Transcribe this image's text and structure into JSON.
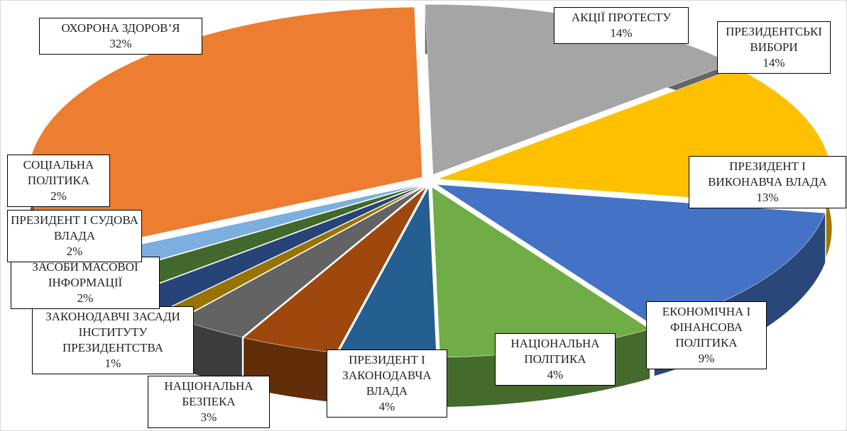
{
  "chart_data": {
    "type": "pie",
    "categories": [
      "АКЦІЇ ПРОТЕСТУ",
      "ПРЕЗИДЕНТСЬКІ ВИБОРИ",
      "ПРЕЗИДЕНТ І ВИКОНАВЧА ВЛАДА",
      "ЕКОНОМІЧНА І ФІНАНСОВА ПОЛІТИКА",
      "НАЦІОНАЛЬНА ПОЛІТИКА",
      "ПРЕЗИДЕНТ І ЗАКОНОДАВЧА ВЛАДА",
      "НАЦІОНАЛЬНА БЕЗПЕКА",
      "ЗАКОНОДАВЧІ ЗАСАДИ ІНСТИТУТУ ПРЕЗИДЕНТСТВА",
      "ЗАСОБИ МАСОВОЇ ІНФОРМАЦІЇ",
      "ПРЕЗИДЕНТ І СУДОВА ВЛАДА",
      "СОЦІАЛЬНА ПОЛІТИКА",
      "ОХОРОНА ЗДОРОВ’Я"
    ],
    "values": [
      14,
      14,
      13,
      9,
      4,
      4,
      3,
      1,
      2,
      2,
      2,
      32
    ],
    "value_labels": [
      "14%",
      "14%",
      "13%",
      "9%",
      "4%",
      "4%",
      "3%",
      "1%",
      "2%",
      "2%",
      "2%",
      "32%"
    ],
    "colors": [
      "#a5a5a5",
      "#ffc000",
      "#4472c4",
      "#70ad47",
      "#255e91",
      "#9e480e",
      "#636363",
      "#997300",
      "#264478",
      "#43682b",
      "#7cafdd",
      "#ed7d31"
    ]
  }
}
